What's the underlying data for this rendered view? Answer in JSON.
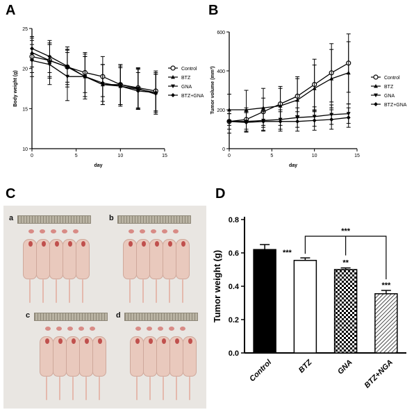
{
  "panels": {
    "A": "A",
    "B": "B",
    "C": "C",
    "D": "D"
  },
  "photo_labels": [
    "a",
    "b",
    "c",
    "d"
  ],
  "chart_data": [
    {
      "id": "A",
      "type": "line",
      "xlabel": "day",
      "ylabel": "Body weight (g)",
      "xlim": [
        0,
        15
      ],
      "ylim": [
        10,
        25
      ],
      "xticks": [
        0,
        5,
        10,
        15
      ],
      "yticks": [
        10,
        15,
        20,
        25
      ],
      "legend_position": "right",
      "x": [
        0,
        2,
        4,
        6,
        8,
        10,
        12,
        14
      ],
      "series": [
        {
          "name": "Control",
          "marker": "circle",
          "values": [
            21.5,
            21.0,
            20.2,
            19.5,
            19.0,
            18.0,
            17.6,
            17.2
          ],
          "errors": [
            2.0,
            2.0,
            2.2,
            2.5,
            2.5,
            2.5,
            2.5,
            2.5
          ]
        },
        {
          "name": "BTZ",
          "marker": "triangle-up",
          "values": [
            22.0,
            21.0,
            20.2,
            19.0,
            18.0,
            17.8,
            17.4,
            17.0
          ],
          "errors": [
            1.8,
            2.2,
            2.5,
            2.5,
            2.5,
            2.5,
            2.5,
            2.5
          ]
        },
        {
          "name": "GNA",
          "marker": "triangle-down",
          "values": [
            21.0,
            20.5,
            19.0,
            19.0,
            18.0,
            18.0,
            17.5,
            16.8
          ],
          "errors": [
            2.0,
            2.5,
            3.0,
            2.8,
            2.5,
            2.5,
            2.5,
            2.5
          ]
        },
        {
          "name": "BTZ+GNA",
          "marker": "diamond",
          "values": [
            22.5,
            21.5,
            20.3,
            19.0,
            18.2,
            17.8,
            17.2,
            17.0
          ],
          "errors": [
            1.5,
            2.0,
            2.0,
            2.5,
            2.3,
            2.3,
            2.3,
            2.3
          ]
        }
      ]
    },
    {
      "id": "B",
      "type": "line",
      "xlabel": "day",
      "ylabel": "Tumor volume (mm³)",
      "xlim": [
        0,
        15
      ],
      "ylim": [
        0,
        600
      ],
      "xticks": [
        0,
        5,
        10,
        15
      ],
      "yticks": [
        0,
        200,
        400,
        600
      ],
      "legend_position": "right",
      "x": [
        0,
        2,
        4,
        6,
        8,
        10,
        12,
        14
      ],
      "series": [
        {
          "name": "Control",
          "marker": "circle",
          "values": [
            140,
            150,
            190,
            230,
            270,
            330,
            390,
            440
          ],
          "errors": [
            60,
            60,
            70,
            80,
            100,
            130,
            150,
            150
          ]
        },
        {
          "name": "BTZ",
          "marker": "triangle-up",
          "values": [
            200,
            200,
            210,
            220,
            250,
            310,
            360,
            390
          ],
          "errors": [
            80,
            100,
            100,
            100,
            110,
            120,
            150,
            160
          ]
        },
        {
          "name": "GNA",
          "marker": "triangle-down",
          "values": [
            140,
            140,
            145,
            150,
            160,
            165,
            175,
            180
          ],
          "errors": [
            40,
            50,
            50,
            50,
            50,
            50,
            50,
            50
          ]
        },
        {
          "name": "BTZ+GNA",
          "marker": "diamond",
          "values": [
            140,
            135,
            140,
            140,
            140,
            145,
            150,
            160
          ],
          "errors": [
            40,
            50,
            50,
            50,
            50,
            50,
            50,
            50
          ]
        }
      ]
    },
    {
      "id": "D",
      "type": "bar",
      "ylabel": "Tumor weight (g)",
      "ylim": [
        0,
        0.8
      ],
      "yticks": [
        "0.0",
        "0.2",
        "0.4",
        "0.6",
        "0.8"
      ],
      "categories": [
        "Control",
        "BTZ",
        "GNA",
        "BTZ+NGA"
      ],
      "values": [
        0.62,
        0.555,
        0.5,
        0.355
      ],
      "errors": [
        0.03,
        0.015,
        0.01,
        0.02
      ],
      "fills": [
        "solid-black",
        "white",
        "checker",
        "hatch"
      ],
      "bar_labels": [
        "",
        "***",
        "**",
        "***"
      ],
      "bracket_label": "***"
    }
  ]
}
